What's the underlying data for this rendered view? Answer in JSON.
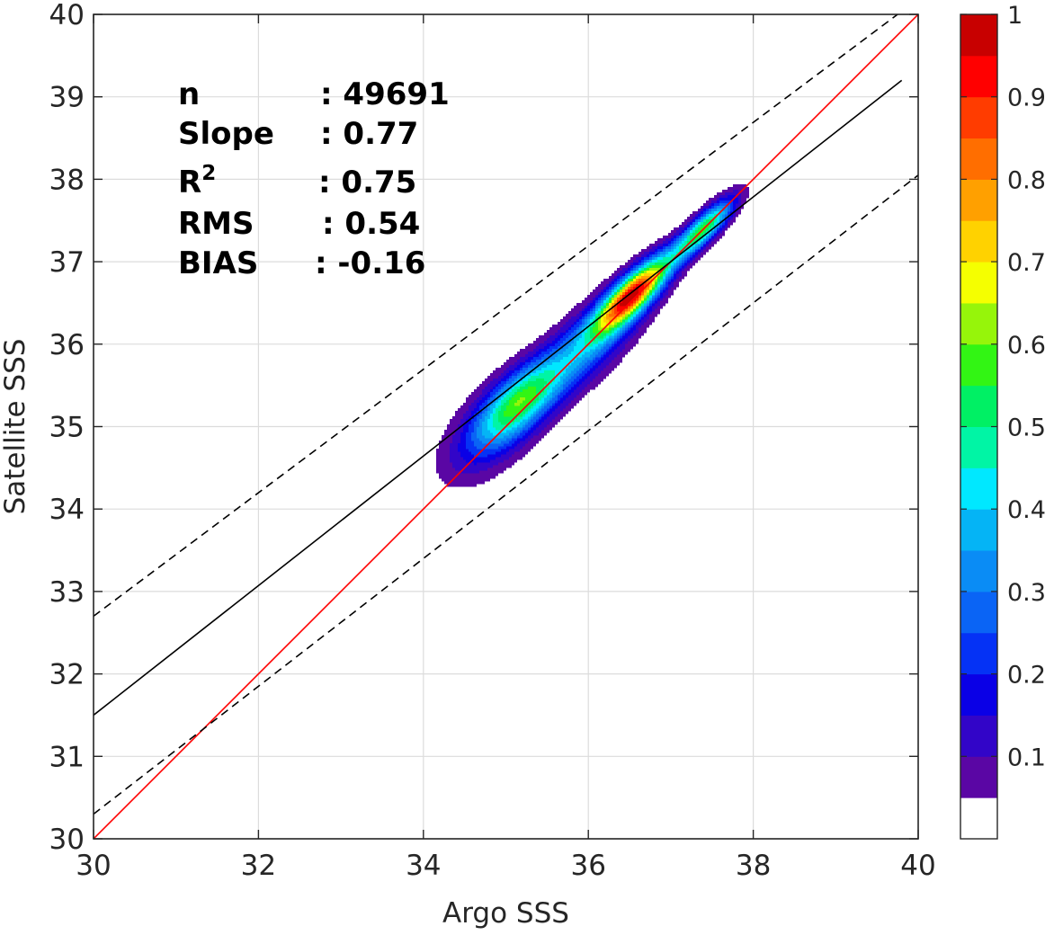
{
  "chart_data": {
    "type": "contour",
    "xlabel": "Argo SSS",
    "ylabel": "Satellite SSS",
    "xlim": [
      30,
      40
    ],
    "ylim": [
      30,
      40
    ],
    "xticks": [
      30,
      32,
      34,
      36,
      38,
      40
    ],
    "yticks": [
      30,
      31,
      32,
      33,
      34,
      35,
      36,
      37,
      38,
      39,
      40
    ],
    "grid": true,
    "stats": [
      {
        "name": "n",
        "value": ": 49691"
      },
      {
        "name": "Slope",
        "value": ": 0.77"
      },
      {
        "name": "R",
        "superscript": "2",
        "value": ": 0.75"
      },
      {
        "name": "RMS",
        "value": ": 0.54"
      },
      {
        "name": "BIAS",
        "value": ": -0.16"
      }
    ],
    "lines": [
      {
        "name": "1:1 line",
        "color": "#ff0000",
        "style": "solid",
        "slope": 1.0,
        "intercept": 0.0
      },
      {
        "name": "fit line",
        "color": "#000000",
        "style": "solid",
        "x": [
          30,
          39.8
        ],
        "y": [
          31.5,
          39.2
        ]
      },
      {
        "name": "upper bound",
        "color": "#000000",
        "style": "dashed",
        "x": [
          30,
          39.75
        ],
        "y": [
          32.7,
          40.0
        ]
      },
      {
        "name": "lower bound",
        "color": "#000000",
        "style": "dashed",
        "x": [
          30,
          40
        ],
        "y": [
          30.3,
          38.05
        ]
      }
    ],
    "density_levels": [
      0.05,
      0.1,
      0.15,
      0.2,
      0.25,
      0.3,
      0.35,
      0.4,
      0.45,
      0.5,
      0.55,
      0.6,
      0.65,
      0.7,
      0.75,
      0.8,
      0.85,
      0.9,
      0.95
    ],
    "density_colors": [
      "#5a06a4",
      "#3205c8",
      "#0a00e6",
      "#0532f5",
      "#0a64f5",
      "#0a8cf5",
      "#05b4f5",
      "#00e8ff",
      "#00f5a5",
      "#00f064",
      "#32f514",
      "#96f50a",
      "#f5ff00",
      "#ffd200",
      "#ffa000",
      "#ff6e00",
      "#ff3c00",
      "#ff0000",
      "#c80000",
      "#8c0000"
    ],
    "peaks": [
      {
        "x": 36.55,
        "y": 36.62,
        "amplitude": 1.0,
        "sx": 0.42,
        "sy": 0.13
      },
      {
        "x": 35.15,
        "y": 35.3,
        "amplitude": 0.5,
        "sx": 0.46,
        "sy": 0.2
      },
      {
        "x": 37.4,
        "y": 37.4,
        "amplitude": 0.65,
        "sx": 0.34,
        "sy": 0.1
      },
      {
        "x": 36.0,
        "y": 36.0,
        "amplitude": 0.38,
        "sx": 0.65,
        "sy": 0.22
      },
      {
        "x": 34.85,
        "y": 34.95,
        "amplitude": 0.18,
        "sx": 0.55,
        "sy": 0.28
      }
    ],
    "colorbar": {
      "min": 0,
      "max": 1,
      "tick_values": [
        0.1,
        0.2,
        0.3,
        0.4,
        0.5,
        0.6,
        0.7,
        0.8,
        0.9,
        1
      ],
      "tick_labels": [
        "0.1",
        "0.2",
        "0.3",
        "0.4",
        "0.5",
        "0.6",
        "0.7",
        "0.8",
        "0.9",
        "1"
      ]
    }
  }
}
